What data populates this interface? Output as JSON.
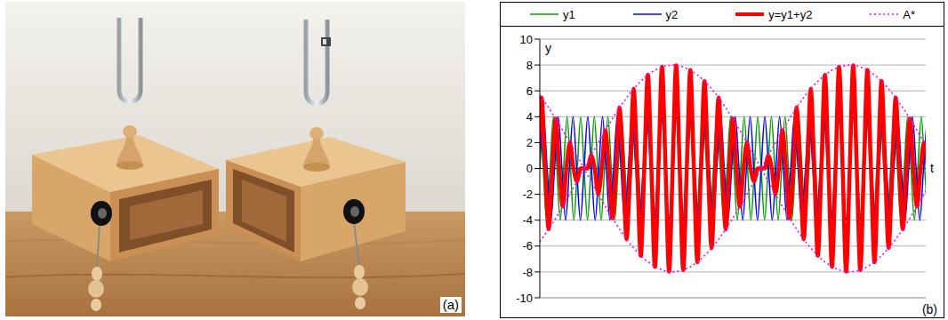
{
  "photo": {
    "label": "(a)"
  },
  "chart_data": {
    "type": "line",
    "panel_label": "(b)",
    "x_label": "t",
    "y_label": "y",
    "xlim": [
      0,
      34
    ],
    "xticks": [],
    "ylim": [
      -10,
      10
    ],
    "yticks": [
      -10,
      -8,
      -6,
      -4,
      -2,
      0,
      2,
      4,
      6,
      8,
      10
    ],
    "grid": true,
    "legend": "top",
    "tick_labels": "y",
    "series": [
      {
        "name": "y1",
        "color": "#00a000",
        "line_style": "solid",
        "x": [
          0,
          0.3,
          0.6,
          0.9,
          1.2,
          1.5,
          1.8,
          2.1,
          2.4,
          2.7,
          3,
          3.3,
          3.6,
          3.9,
          4.2,
          4.5,
          4.8,
          5.1,
          5.4,
          5.7,
          6,
          6.3,
          6.6,
          6.9,
          7.2,
          7.5,
          7.8,
          8.1,
          8.4,
          8.7,
          9,
          9.3,
          9.6,
          9.9,
          10.2,
          10.5,
          10.8,
          11.1,
          11.4,
          11.7,
          12,
          12.3,
          12.6,
          12.9,
          13.2,
          13.5,
          13.8,
          14.1,
          14.4,
          14.7,
          15,
          15.3,
          15.6,
          15.9,
          16.2,
          16.5,
          16.8,
          17.1,
          17.4,
          17.7,
          18,
          18.3,
          18.6,
          18.9,
          19.2,
          19.5,
          19.8,
          20.1,
          20.4,
          20.7,
          21,
          21.3,
          21.6,
          21.9,
          22.2,
          22.5,
          22.8,
          23.1,
          23.4,
          23.7,
          24,
          24.3,
          24.6,
          24.9,
          25.2,
          25.5,
          25.8,
          26.1,
          26.4,
          26.7,
          27,
          27.3,
          27.6,
          27.9,
          28.2,
          28.5,
          28.8,
          29.1,
          29.4,
          29.7,
          30,
          30.3,
          30.6,
          30.9,
          31.2,
          31.5,
          31.8,
          32.1,
          32.4,
          32.7,
          33,
          33.3,
          33.6,
          33.9,
          34.2
        ],
        "values": [
          4,
          0,
          -4,
          0,
          4,
          0,
          -4,
          0,
          4,
          0,
          -4,
          0,
          4,
          0,
          -4,
          0,
          4,
          0,
          -4,
          0,
          4,
          0,
          -4,
          0,
          4,
          0,
          -4,
          0,
          4,
          0,
          -4,
          0,
          4,
          0,
          -4,
          0,
          4,
          0,
          -4,
          0,
          4,
          0,
          -4,
          0,
          4,
          0,
          -4,
          0,
          4,
          0,
          -4,
          0,
          4,
          0,
          -4,
          0,
          4,
          0,
          -4,
          0,
          4,
          0,
          -4,
          0,
          4,
          0,
          -4,
          0,
          4,
          0,
          -4,
          0,
          4,
          0,
          -4,
          0,
          4,
          0,
          -4,
          0,
          4,
          0,
          -4,
          0,
          4,
          0,
          -4,
          0,
          4,
          0,
          -4,
          0,
          4,
          0,
          -4,
          0,
          4,
          0,
          -4,
          0,
          4,
          0,
          -4,
          0,
          4,
          0,
          -4,
          0,
          4,
          0,
          -4,
          0,
          4,
          0,
          -4
        ]
      },
      {
        "name": "y2",
        "color": "#0000ff",
        "line_style": "solid",
        "x": [
          0,
          0.325,
          0.65,
          0.975,
          1.3,
          1.625,
          1.95,
          2.275,
          2.6,
          2.925,
          3.25,
          3.575,
          3.9,
          4.225,
          4.55,
          4.875,
          5.2,
          5.525,
          5.85,
          6.175,
          6.5,
          6.825,
          7.15,
          7.475,
          7.8,
          8.125,
          8.45,
          8.775,
          9.1,
          9.425,
          9.75,
          10.075,
          10.4,
          10.725,
          11.05,
          11.375,
          11.7,
          12.025,
          12.35,
          12.675,
          13,
          13.325,
          13.65,
          13.975,
          14.3,
          14.625,
          14.95,
          15.275,
          15.6,
          15.925,
          16.25,
          16.575,
          16.9,
          17.225,
          17.55,
          17.875,
          18.2,
          18.525,
          18.85,
          19.175,
          19.5,
          19.825,
          20.15,
          20.475,
          20.8,
          21.125,
          21.45,
          21.775,
          22.1,
          22.425,
          22.75,
          23.075,
          23.4,
          23.725,
          24.05,
          24.375,
          24.7,
          25.025,
          25.35,
          25.675,
          26,
          26.325,
          26.65,
          26.975,
          27.3,
          27.625,
          27.95,
          28.275,
          28.6,
          28.925,
          29.25,
          29.575,
          29.9,
          30.225,
          30.55,
          30.875,
          31.2,
          31.525,
          31.85,
          32.175,
          32.5,
          32.825,
          33.15,
          33.475,
          33.8,
          34.125
        ],
        "values": [
          0,
          4,
          0,
          -4,
          0,
          4,
          0,
          -4,
          0,
          4,
          0,
          -4,
          0,
          4,
          0,
          -4,
          0,
          4,
          0,
          -4,
          0,
          4,
          0,
          -4,
          0,
          4,
          0,
          -4,
          0,
          4,
          0,
          -4,
          0,
          4,
          0,
          -4,
          0,
          4,
          0,
          -4,
          0,
          4,
          0,
          -4,
          0,
          4,
          0,
          -4,
          0,
          4,
          0,
          -4,
          0,
          4,
          0,
          -4,
          0,
          4,
          0,
          -4,
          0,
          4,
          0,
          -4,
          0,
          4,
          0,
          -4,
          0,
          4,
          0,
          -4,
          0,
          4,
          0,
          -4,
          0,
          4,
          0,
          -4,
          0,
          4,
          0,
          -4,
          0,
          4,
          0,
          -4,
          0,
          4,
          0,
          -4,
          0,
          4,
          0,
          -4,
          0,
          4,
          0,
          -4,
          0,
          4,
          0,
          -4,
          0,
          4
        ]
      },
      {
        "name": "y=y1+y2",
        "color": "#ff0000",
        "line_style": "solid",
        "x": [
          -0.156,
          0.156,
          0.468,
          0.78,
          1.092,
          1.404,
          1.716,
          2.028,
          2.34,
          2.652,
          2.964,
          3.276,
          3.588,
          3.9,
          4.212,
          4.524,
          4.836,
          5.148,
          5.46,
          5.772,
          6.084,
          6.396,
          6.708,
          7.02,
          7.332,
          7.644,
          7.956,
          8.268,
          8.58,
          8.892,
          9.204,
          9.516,
          9.828,
          10.14,
          10.452,
          10.764,
          11.076,
          11.388,
          11.7,
          12.012,
          12.324,
          12.636,
          12.948,
          13.26,
          13.572,
          13.884,
          14.196,
          14.508,
          14.82,
          15.132,
          15.444,
          15.756,
          16.068,
          16.38,
          16.692,
          17.004,
          17.316,
          17.628,
          17.94,
          18.252,
          18.564,
          18.876,
          19.188,
          19.5,
          19.812,
          20.124,
          20.436,
          20.748,
          21.06,
          21.372,
          21.684,
          21.996,
          22.308,
          22.62,
          22.932,
          23.244,
          23.556,
          23.868,
          24.18,
          24.492,
          24.804,
          25.116,
          25.428,
          25.74,
          26.052,
          26.364,
          26.676,
          26.988,
          27.3,
          27.612,
          27.924,
          28.236,
          28.548,
          28.86,
          29.172,
          29.484,
          29.796,
          30.108,
          30.42,
          30.732,
          31.044,
          31.356,
          31.668,
          31.98,
          32.292,
          32.604,
          32.916,
          33.228,
          33.54,
          33.852,
          34.164
        ],
        "values": [
          0,
          5.48,
          0,
          -4.7,
          0,
          3.85,
          0,
          -2.94,
          0,
          1.99,
          0,
          -1,
          0,
          0,
          0,
          1,
          0,
          -1.99,
          0,
          2.94,
          0,
          -3.85,
          0,
          4.7,
          0,
          -5.48,
          0,
          6.16,
          0,
          -6.75,
          0,
          7.24,
          0,
          -7.61,
          0,
          7.86,
          0,
          -7.98,
          0,
          7.98,
          0,
          -7.86,
          0,
          7.61,
          0,
          -7.24,
          0,
          6.75,
          0,
          -6.16,
          0,
          5.48,
          0,
          -4.7,
          0,
          3.85,
          0,
          -2.94,
          0,
          1.99,
          0,
          -1,
          0,
          0,
          0,
          1,
          0,
          -1.99,
          0,
          2.94,
          0,
          -3.85,
          0,
          4.7,
          0,
          -5.48,
          0,
          6.16,
          0,
          -6.75,
          0,
          7.24,
          0,
          -7.61,
          0,
          7.86,
          0,
          -7.98,
          0,
          7.98,
          0,
          -7.86,
          0,
          7.61,
          0,
          -7.24,
          0,
          6.75,
          0,
          -6.16,
          0,
          5.48,
          0,
          -4.7,
          0,
          3.85,
          0,
          -2.94,
          0,
          1.99,
          0
        ]
      },
      {
        "name": "A*",
        "color": "#ff00ff",
        "line_style": "dotted",
        "x": [
          0,
          0.78,
          1.56,
          2.34,
          3.12,
          3.9,
          4.68,
          5.46,
          6.24,
          7.02,
          7.8,
          8.58,
          9.36,
          10.14,
          10.92,
          11.7,
          12.48,
          13.26,
          14.04,
          14.82,
          15.6,
          16.38,
          17.16,
          17.94,
          18.72,
          19.5,
          20.28,
          21.06,
          21.84,
          22.62,
          23.4,
          24.18,
          24.96,
          25.74,
          26.52,
          27.3,
          28.08,
          28.86,
          29.64,
          30.42,
          31.2,
          31.98,
          32.76,
          33.54,
          34.32
        ],
        "values": [
          5.66,
          4.7,
          3.63,
          2.47,
          1.25,
          0,
          1.25,
          2.47,
          3.63,
          4.7,
          5.66,
          6.47,
          7.13,
          7.61,
          7.9,
          8,
          7.9,
          7.61,
          7.13,
          6.47,
          5.66,
          4.7,
          3.63,
          2.47,
          1.25,
          0,
          1.25,
          2.47,
          3.63,
          4.7,
          5.66,
          6.47,
          7.13,
          7.61,
          7.9,
          8,
          7.9,
          7.61,
          7.13,
          6.47,
          5.66,
          4.7,
          3.63,
          2.47,
          1.25
        ],
        "lower": [
          -5.66,
          -4.7,
          -3.63,
          -2.47,
          -1.25,
          0,
          -1.25,
          -2.47,
          -3.63,
          -4.7,
          -5.66,
          -6.47,
          -7.13,
          -7.61,
          -7.9,
          -8,
          -7.9,
          -7.61,
          -7.13,
          -6.47,
          -5.66,
          -4.7,
          -3.63,
          -2.47,
          -1.25,
          0,
          -1.25,
          -2.47,
          -3.63,
          -4.7,
          -5.66,
          -6.47,
          -7.13,
          -7.61,
          -7.9,
          -8,
          -7.9,
          -7.61,
          -7.13,
          -6.47,
          -5.66,
          -4.7,
          -3.63,
          -2.47,
          -1.25
        ]
      }
    ]
  }
}
